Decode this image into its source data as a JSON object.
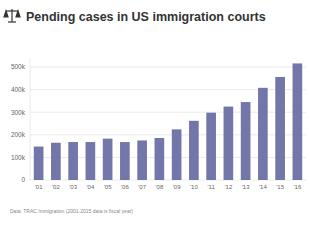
{
  "chart_data": {
    "type": "bar",
    "title": "Pending cases in US immigration courts",
    "source": "Data: TRAC Immigration (2001-2015 data is fiscal year)",
    "categories": [
      "'01",
      "'02",
      "'03",
      "'04",
      "'05",
      "'06",
      "'07",
      "'08",
      "'09",
      "'10",
      "'11",
      "'12",
      "'13",
      "'14",
      "'15",
      "'16"
    ],
    "values": [
      148000,
      165000,
      168000,
      168000,
      183000,
      168000,
      175000,
      186000,
      224000,
      262000,
      298000,
      325000,
      345000,
      408000,
      456000,
      516000
    ],
    "color": "#7376a8",
    "ylim": [
      0,
      540000
    ],
    "yticks": [
      0,
      {
        "value": 100000,
        "label": "100k"
      },
      {
        "value": 200000,
        "label": "200k"
      },
      {
        "value": 300000,
        "label": "300k"
      },
      {
        "value": 400000,
        "label": "400k"
      },
      {
        "value": 500000,
        "label": "500k"
      }
    ],
    "grid": true
  }
}
